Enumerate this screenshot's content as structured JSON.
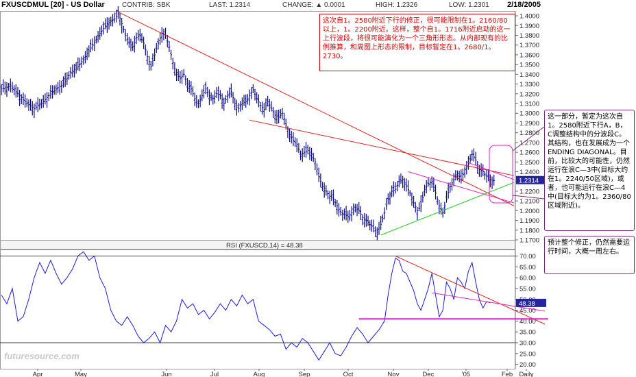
{
  "header": {
    "title": "FXUSCDMUL [20] - US Dollar",
    "contrib": "CONTRIB: SBK",
    "last": "LAST: 1.2314",
    "change": "CHANGE: ▲ 0.0001",
    "high": "HIGH: 1.2326",
    "low": "LOW: 1.2301",
    "date": "2/18/2005"
  },
  "notes": {
    "note1": "这次自1。2580附近下行的修正，很可能限制在1。2160/80以上，1。2200附近。这样，整个自1。1716附近启动的这一上行波段，将很可能演化为一个三角形形态。从内部现有的比例推算，和周图上形态的限制，目标暂定在1。2680/1。2730。",
    "note2": "这一部分，暂定为这次自1。2580附近下行A，B，C调整结构中的分波段C。其结构，也在发展成为一个ENDING DIAGONAL。目前，比较大的可能性，仍然运行在浪C—3中(目标大约在1。2240/50区域)，或者，也可能运行在浪C—4中(目标大约为1。2360/80区域附近)。",
    "note3": "预计整个修正，仍然需要运行时间，大概一周左右。"
  },
  "watermark": "futuresource.com",
  "colors": {
    "bars": "#0a0a8c",
    "trend_red": "#dd2222",
    "trend_green": "#22cc22",
    "magenta": "#e020c8",
    "rsi_line": "#1a1add",
    "price_tag": "#2525a0"
  },
  "chart_data": [
    {
      "type": "bar",
      "subtype": "ohlc",
      "ylim": [
        1.17,
        1.405
      ],
      "y_ticks": [
        "1.4000",
        "1.3900",
        "1.3800",
        "1.3700",
        "1.3600",
        "1.3500",
        "1.3400",
        "1.3300",
        "1.3200",
        "1.3100",
        "1.3000",
        "1.2900",
        "1.2800",
        "1.2700",
        "1.2600",
        "1.2500",
        "1.2400",
        "1.2300",
        "1.2200",
        "1.2100",
        "1.2000",
        "1.1900",
        "1.1800",
        "1.1700"
      ],
      "x_ticks": [
        "Apr",
        "May",
        "Jun",
        "Jul",
        "Aug",
        "Sep",
        "Oct",
        "Nov",
        "Dec",
        "'05",
        "Feb",
        "Daily"
      ],
      "last_price": "1.2314",
      "grid": false,
      "close_path": [
        [
          0,
          1.325
        ],
        [
          5,
          1.328
        ],
        [
          10,
          1.318
        ],
        [
          14,
          1.31
        ],
        [
          18,
          1.305
        ],
        [
          22,
          1.31
        ],
        [
          26,
          1.318
        ],
        [
          30,
          1.325
        ],
        [
          34,
          1.33
        ],
        [
          38,
          1.342
        ],
        [
          42,
          1.348
        ],
        [
          46,
          1.358
        ],
        [
          50,
          1.37
        ],
        [
          54,
          1.382
        ],
        [
          58,
          1.392
        ],
        [
          62,
          1.397
        ],
        [
          64,
          1.402
        ],
        [
          66,
          1.392
        ],
        [
          68,
          1.38
        ],
        [
          70,
          1.372
        ],
        [
          72,
          1.368
        ],
        [
          74,
          1.378
        ],
        [
          76,
          1.38
        ],
        [
          78,
          1.372
        ],
        [
          80,
          1.358
        ],
        [
          82,
          1.348
        ],
        [
          84,
          1.36
        ],
        [
          86,
          1.372
        ],
        [
          88,
          1.382
        ],
        [
          90,
          1.38
        ],
        [
          92,
          1.368
        ],
        [
          94,
          1.352
        ],
        [
          96,
          1.34
        ],
        [
          98,
          1.336
        ],
        [
          100,
          1.34
        ],
        [
          102,
          1.33
        ],
        [
          104,
          1.325
        ],
        [
          106,
          1.315
        ],
        [
          108,
          1.31
        ],
        [
          110,
          1.318
        ],
        [
          112,
          1.325
        ],
        [
          114,
          1.318
        ],
        [
          116,
          1.315
        ],
        [
          118,
          1.32
        ],
        [
          120,
          1.318
        ],
        [
          122,
          1.31
        ],
        [
          124,
          1.318
        ],
        [
          126,
          1.322
        ],
        [
          128,
          1.31
        ],
        [
          130,
          1.305
        ],
        [
          132,
          1.31
        ],
        [
          134,
          1.312
        ],
        [
          136,
          1.318
        ],
        [
          138,
          1.324
        ],
        [
          140,
          1.315
        ],
        [
          142,
          1.308
        ],
        [
          144,
          1.304
        ],
        [
          146,
          1.312
        ],
        [
          148,
          1.305
        ],
        [
          150,
          1.298
        ],
        [
          152,
          1.296
        ],
        [
          154,
          1.3
        ],
        [
          156,
          1.288
        ],
        [
          158,
          1.278
        ],
        [
          160,
          1.272
        ],
        [
          162,
          1.268
        ],
        [
          164,
          1.258
        ],
        [
          166,
          1.26
        ],
        [
          168,
          1.262
        ],
        [
          170,
          1.258
        ],
        [
          172,
          1.25
        ],
        [
          174,
          1.235
        ],
        [
          176,
          1.225
        ],
        [
          178,
          1.22
        ],
        [
          180,
          1.215
        ],
        [
          182,
          1.212
        ],
        [
          184,
          1.205
        ],
        [
          186,
          1.198
        ],
        [
          188,
          1.196
        ],
        [
          190,
          1.194
        ],
        [
          192,
          1.198
        ],
        [
          194,
          1.203
        ],
        [
          196,
          1.2
        ],
        [
          198,
          1.193
        ],
        [
          200,
          1.19
        ],
        [
          202,
          1.186
        ],
        [
          204,
          1.182
        ],
        [
          206,
          1.178
        ],
        [
          208,
          1.186
        ],
        [
          210,
          1.198
        ],
        [
          212,
          1.212
        ],
        [
          214,
          1.22
        ],
        [
          216,
          1.222
        ],
        [
          218,
          1.23
        ],
        [
          220,
          1.232
        ],
        [
          222,
          1.225
        ],
        [
          224,
          1.218
        ],
        [
          226,
          1.208
        ],
        [
          228,
          1.2
        ],
        [
          230,
          1.205
        ],
        [
          232,
          1.222
        ],
        [
          234,
          1.228
        ],
        [
          236,
          1.23
        ],
        [
          238,
          1.218
        ],
        [
          240,
          1.205
        ],
        [
          242,
          1.198
        ],
        [
          244,
          1.212
        ],
        [
          246,
          1.225
        ],
        [
          248,
          1.232
        ],
        [
          250,
          1.238
        ],
        [
          252,
          1.232
        ],
        [
          254,
          1.242
        ],
        [
          256,
          1.248
        ],
        [
          258,
          1.258
        ],
        [
          260,
          1.252
        ],
        [
          262,
          1.242
        ],
        [
          264,
          1.24
        ],
        [
          266,
          1.235
        ],
        [
          268,
          1.232
        ],
        [
          270,
          1.231
        ]
      ],
      "trendlines": [
        {
          "color": "red",
          "from": [
            64,
            1.404
          ],
          "to": [
            281,
            1.205
          ]
        },
        {
          "color": "red",
          "from": [
            136,
            1.293
          ],
          "to": [
            281,
            1.236
          ]
        },
        {
          "color": "green",
          "from": [
            208,
            1.175
          ],
          "to": [
            281,
            1.229
          ]
        },
        {
          "color": "magenta",
          "from": [
            223,
            1.24
          ],
          "to": [
            281,
            1.208
          ]
        },
        {
          "color": "magenta",
          "from": [
            255,
            1.25
          ],
          "to": [
            281,
            1.232
          ]
        }
      ]
    },
    {
      "type": "line",
      "title": "RSI (FXUSCD,14) = 48.38",
      "ylim": [
        18,
        73
      ],
      "y_ticks": [
        "70.00",
        "65.00",
        "60.00",
        "55.00",
        "50.00",
        "45.00",
        "40.00",
        "35.00",
        "30.00",
        "25.00",
        "20.00"
      ],
      "last_value": "48.38",
      "hlines": [
        70,
        30
      ],
      "values": [
        [
          0,
          52
        ],
        [
          3,
          48
        ],
        [
          6,
          55
        ],
        [
          9,
          40
        ],
        [
          12,
          42
        ],
        [
          15,
          50
        ],
        [
          18,
          60
        ],
        [
          21,
          67
        ],
        [
          24,
          62
        ],
        [
          27,
          68
        ],
        [
          30,
          62
        ],
        [
          33,
          57
        ],
        [
          36,
          60
        ],
        [
          39,
          64
        ],
        [
          42,
          70
        ],
        [
          45,
          72
        ],
        [
          48,
          68
        ],
        [
          51,
          70
        ],
        [
          54,
          60
        ],
        [
          57,
          55
        ],
        [
          60,
          45
        ],
        [
          63,
          40
        ],
        [
          66,
          38
        ],
        [
          69,
          42
        ],
        [
          72,
          38
        ],
        [
          75,
          33
        ],
        [
          78,
          30
        ],
        [
          81,
          32
        ],
        [
          84,
          35
        ],
        [
          87,
          30
        ],
        [
          90,
          38
        ],
        [
          93,
          35
        ],
        [
          96,
          40
        ],
        [
          99,
          50
        ],
        [
          102,
          46
        ],
        [
          105,
          48
        ],
        [
          108,
          43
        ],
        [
          111,
          45
        ],
        [
          114,
          41
        ],
        [
          117,
          44
        ],
        [
          120,
          48
        ],
        [
          123,
          45
        ],
        [
          126,
          50
        ],
        [
          129,
          47
        ],
        [
          132,
          52
        ],
        [
          135,
          48
        ],
        [
          138,
          50
        ],
        [
          141,
          40
        ],
        [
          144,
          38
        ],
        [
          147,
          36
        ],
        [
          150,
          33
        ],
        [
          153,
          34
        ],
        [
          156,
          27
        ],
        [
          159,
          30
        ],
        [
          162,
          28
        ],
        [
          165,
          32
        ],
        [
          168,
          30
        ],
        [
          171,
          26
        ],
        [
          174,
          22
        ],
        [
          177,
          26
        ],
        [
          180,
          30
        ],
        [
          183,
          25
        ],
        [
          186,
          24
        ],
        [
          189,
          28
        ],
        [
          192,
          33
        ],
        [
          195,
          37
        ],
        [
          198,
          34
        ],
        [
          201,
          30
        ],
        [
          204,
          33
        ],
        [
          207,
          36
        ],
        [
          210,
          40
        ],
        [
          212,
          52
        ],
        [
          214,
          62
        ],
        [
          216,
          69
        ],
        [
          218,
          68
        ],
        [
          220,
          63
        ],
        [
          222,
          62
        ],
        [
          224,
          58
        ],
        [
          226,
          54
        ],
        [
          228,
          48
        ],
        [
          230,
          45
        ],
        [
          232,
          50
        ],
        [
          234,
          55
        ],
        [
          236,
          62
        ],
        [
          238,
          52
        ],
        [
          240,
          42
        ],
        [
          242,
          45
        ],
        [
          244,
          58
        ],
        [
          246,
          55
        ],
        [
          248,
          50
        ],
        [
          250,
          60
        ],
        [
          252,
          58
        ],
        [
          254,
          55
        ],
        [
          256,
          63
        ],
        [
          258,
          67
        ],
        [
          260,
          58
        ],
        [
          262,
          50
        ],
        [
          264,
          46
        ],
        [
          266,
          49
        ],
        [
          268,
          48.38
        ]
      ],
      "trendlines": [
        {
          "color": "red",
          "from": [
            216,
            70
          ],
          "to": [
            281,
            37
          ]
        },
        {
          "color": "magenta",
          "from": [
            236,
            53
          ],
          "to": [
            281,
            43
          ]
        },
        {
          "color": "magenta",
          "level": 41,
          "from": 196,
          "to": 281
        }
      ]
    }
  ]
}
